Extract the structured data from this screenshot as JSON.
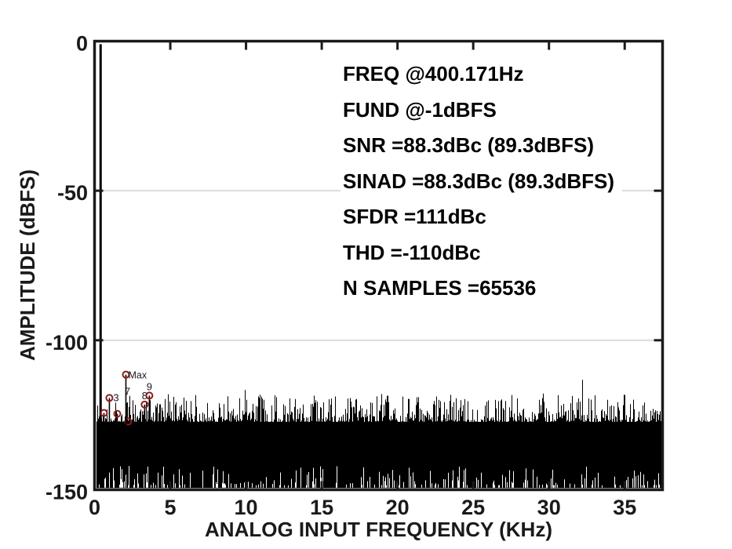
{
  "chart_data": {
    "type": "line",
    "subtype": "fft-spectrum",
    "title": "",
    "xlabel": "ANALOG INPUT FREQUENCY (KHz)",
    "ylabel": "AMPLITUDE (dBFS)",
    "xlim": [
      0,
      37.5
    ],
    "ylim": [
      -150,
      0
    ],
    "x_ticks": [
      0,
      5,
      10,
      15,
      20,
      25,
      30,
      35
    ],
    "y_ticks": [
      0,
      -50,
      -100,
      -150
    ],
    "y_gridlines": [
      -50,
      -100
    ],
    "grid_on": true,
    "legend": "none",
    "axis_color": "#1a1a1a",
    "grid_color": "#dcdcdc",
    "data_color": "#000000",
    "marker_color": "#8b1d1d",
    "annotations": [
      "FREQ @400.171Hz",
      "FUND @-1dBFS",
      "SNR =88.3dBc (89.3dBFS)",
      "SINAD =88.3dBc (89.3dBFS)",
      "SFDR =111dBc",
      "THD =-110dBc",
      "N SAMPLES =65536"
    ],
    "fundamental": {
      "freq_khz": 0.4,
      "level_dbfs": -1
    },
    "harmonics": [
      {
        "n": 2,
        "freq_khz": 0.62,
        "level_dbfs": -124.3,
        "label": "",
        "label_pos": "none"
      },
      {
        "n": 3,
        "freq_khz": 0.98,
        "level_dbfs": -119.3,
        "label": "3",
        "label_pos": "right"
      },
      {
        "n": 4,
        "freq_khz": 1.5,
        "level_dbfs": -124.6,
        "label": "",
        "label_pos": "none"
      },
      {
        "n": 6,
        "freq_khz": 2.22,
        "level_dbfs": -127.2,
        "label": "",
        "label_pos": "none"
      },
      {
        "n": 7,
        "freq_khz": 2.07,
        "level_dbfs": -111.5,
        "label": "7",
        "label_pos": "below",
        "max_label": "Max"
      },
      {
        "n": 8,
        "freq_khz": 3.31,
        "level_dbfs": -121.5,
        "label": "8",
        "label_pos": "above"
      },
      {
        "n": 9,
        "freq_khz": 3.62,
        "level_dbfs": -118.5,
        "label": "9",
        "label_pos": "above"
      }
    ],
    "noise_floor": {
      "top_envelope_mean_dbfs": -124.5,
      "top_envelope_max_dbfs": -113,
      "bottom_dbfs": -150,
      "seed": 1337
    }
  }
}
